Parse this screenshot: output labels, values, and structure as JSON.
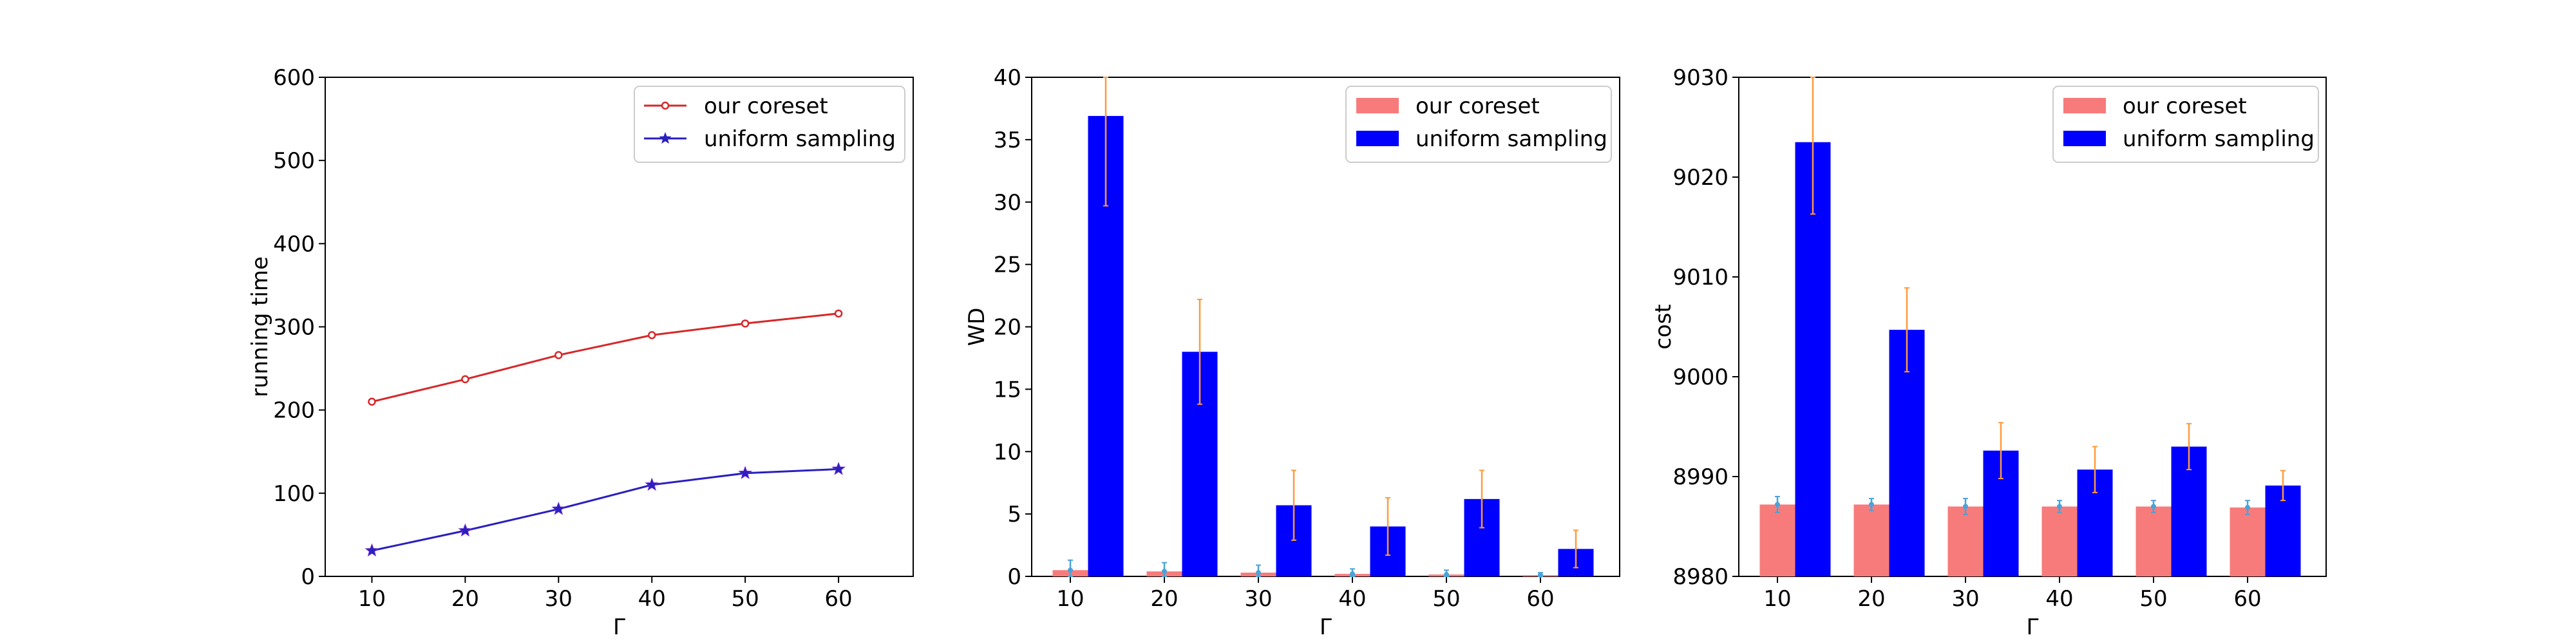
{
  "colors": {
    "coreset_line": "#d62728",
    "uniform_line": "#2a1fbf",
    "coreset_bar": "#f77b7b",
    "uniform_bar": "#0000ff",
    "error_bar": "#ff9a3c",
    "coreset_error": "#4aa3d8"
  },
  "chart_data": [
    {
      "type": "line",
      "xlabel": "Γ",
      "ylabel": "running time",
      "x": [
        10,
        20,
        30,
        40,
        50,
        60
      ],
      "xticks": [
        "10",
        "20",
        "30",
        "40",
        "50",
        "60"
      ],
      "yticks": [
        "0",
        "100",
        "200",
        "300",
        "400",
        "500",
        "600"
      ],
      "xlim": [
        5,
        68
      ],
      "ylim": [
        0,
        600
      ],
      "legend_position": "top-right",
      "series": [
        {
          "name": "our coreset",
          "marker": "circle",
          "values": [
            210,
            237,
            266,
            290,
            304,
            316
          ]
        },
        {
          "name": "uniform sampling",
          "marker": "star",
          "values": [
            31,
            55,
            81,
            110,
            124,
            129
          ]
        }
      ]
    },
    {
      "type": "bar",
      "xlabel": "Γ",
      "ylabel": "WD",
      "categories": [
        "10",
        "20",
        "30",
        "40",
        "50",
        "60"
      ],
      "yticks": [
        "0",
        "5",
        "10",
        "15",
        "20",
        "25",
        "30",
        "35",
        "40"
      ],
      "ylim": [
        0,
        40
      ],
      "legend_position": "top-right",
      "series": [
        {
          "name": "our coreset",
          "values": [
            0.5,
            0.4,
            0.3,
            0.2,
            0.15,
            0.1
          ],
          "errors": [
            0.8,
            0.7,
            0.6,
            0.4,
            0.35,
            0.2
          ]
        },
        {
          "name": "uniform sampling",
          "values": [
            36.9,
            18.0,
            5.7,
            4.0,
            6.2,
            2.2
          ],
          "errors": [
            7.2,
            4.2,
            2.8,
            2.3,
            2.3,
            1.5
          ]
        }
      ]
    },
    {
      "type": "bar",
      "xlabel": "Γ",
      "ylabel": "cost",
      "categories": [
        "10",
        "20",
        "30",
        "40",
        "50",
        "60"
      ],
      "yticks": [
        "8980",
        "8990",
        "9000",
        "9010",
        "9020",
        "9030"
      ],
      "ylim": [
        8980,
        9030
      ],
      "legend_position": "top-right",
      "series": [
        {
          "name": "our coreset",
          "values": [
            8987.2,
            8987.2,
            8987.0,
            8987.0,
            8987.0,
            8986.9
          ],
          "errors": [
            0.8,
            0.6,
            0.8,
            0.6,
            0.6,
            0.7
          ]
        },
        {
          "name": "uniform sampling",
          "values": [
            9023.5,
            9004.7,
            8992.6,
            8990.7,
            8993.0,
            8989.1
          ],
          "errors": [
            7.2,
            4.2,
            2.8,
            2.3,
            2.3,
            1.5
          ]
        }
      ]
    }
  ]
}
